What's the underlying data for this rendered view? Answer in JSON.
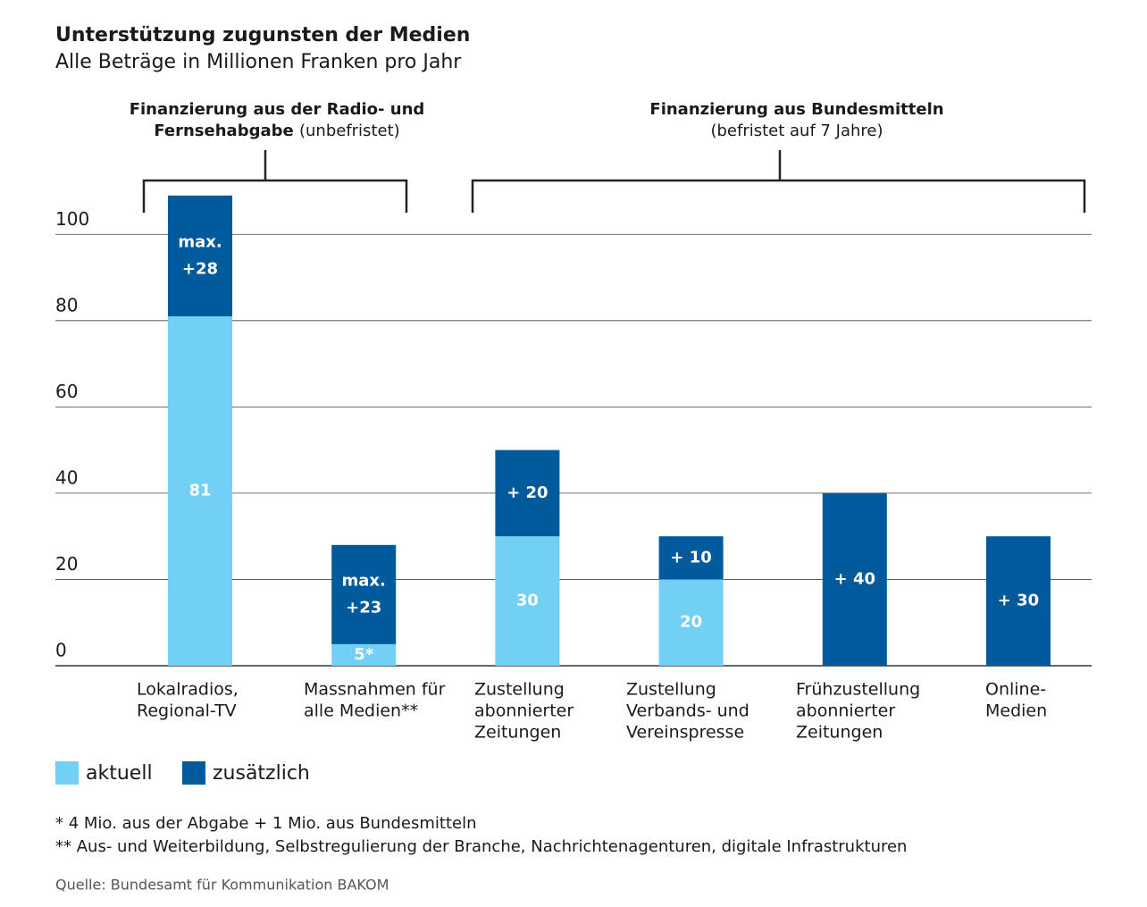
{
  "chart_data": {
    "type": "stacked-bar",
    "title": "Unterstützung zugunsten der Medien",
    "subtitle": "Alle Beträge in Millionen Franken pro Jahr",
    "groups": [
      {
        "title": [
          "Finanzierung aus der Radio- und",
          "Fernsehabgabe"
        ],
        "note": "(unbefristet)"
      },
      {
        "title": [
          "Finanzierung aus Bundesmitteln"
        ],
        "note": "(befristet auf 7 Jahre)"
      }
    ],
    "categories": [
      [
        "Lokalradios,",
        "Regional-TV"
      ],
      [
        "Massnahmen für",
        "alle Medien**"
      ],
      [
        "Zustellung",
        "abonnierter",
        "Zeitungen"
      ],
      [
        "Zustellung",
        "Verbands- und",
        "Vereinspresse"
      ],
      [
        "Frühzustellung",
        "abonnierter",
        "Zeitungen"
      ],
      [
        "Online-",
        "Medien"
      ]
    ],
    "series": [
      {
        "name": "aktuell",
        "color": "#72d0f5",
        "values": [
          81,
          5,
          30,
          20,
          null,
          null
        ],
        "value_labels": [
          [
            "81"
          ],
          [
            "5*"
          ],
          [
            "30"
          ],
          [
            "20"
          ],
          null,
          null
        ]
      },
      {
        "name": "zusätzlich",
        "color": "#005a9c",
        "values": [
          28,
          23,
          20,
          10,
          40,
          30
        ],
        "value_labels": [
          [
            "max.",
            "+28"
          ],
          [
            "max.",
            "+23"
          ],
          [
            "+ 20"
          ],
          [
            "+ 10"
          ],
          [
            "+ 40"
          ],
          [
            "+ 30"
          ]
        ]
      }
    ],
    "ylim": [
      0,
      110
    ],
    "yticks": [
      0,
      20,
      40,
      60,
      80,
      100
    ],
    "grid": true,
    "footnotes": [
      "* 4 Mio. aus der Abgabe + 1 Mio. aus Bundesmitteln",
      "** Aus- und Weiterbildung, Selbstregulierung der Branche, Nachrichtenagenturen, digitale Infrastrukturen"
    ],
    "source": "Quelle: Bundesamt für Kommunikation BAKOM"
  }
}
